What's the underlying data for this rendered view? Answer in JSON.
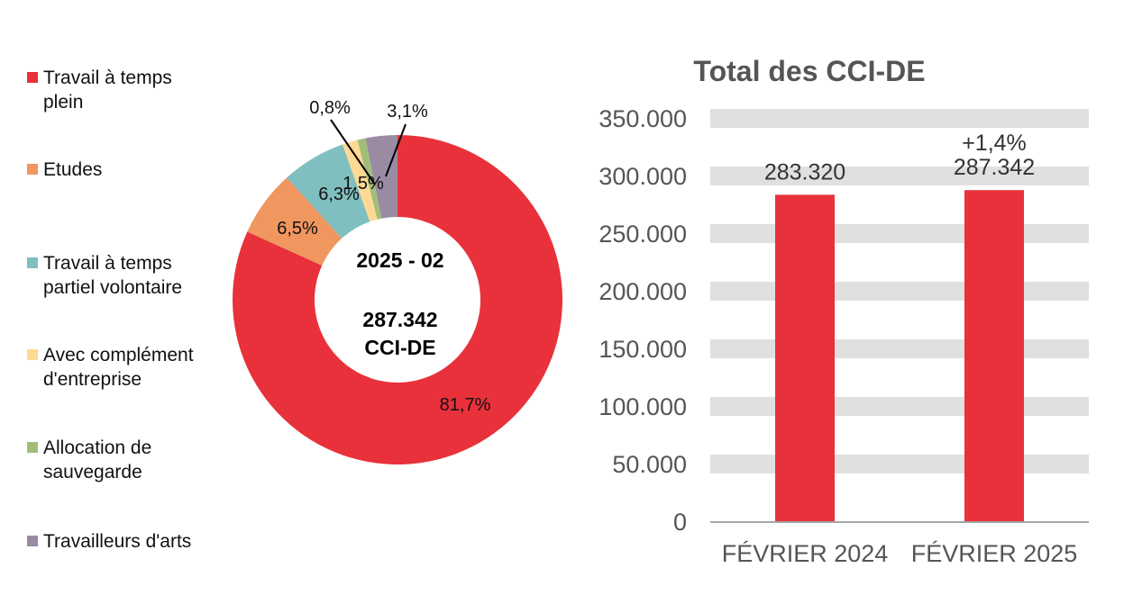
{
  "chart_data": [
    {
      "type": "pie",
      "variant": "donut",
      "center_text": {
        "line1": "2025 - 02",
        "line2": "287.342",
        "line3": "CCI-DE"
      },
      "legend_placement": "left",
      "slices": [
        {
          "name": "Travail à temps plein",
          "value": 81.7,
          "label": "81,7%",
          "color": "#E8313A"
        },
        {
          "name": "Etudes",
          "value": 6.5,
          "label": "6,5%",
          "color": "#F0965F"
        },
        {
          "name": "Travail à temps partiel volontaire",
          "value": 6.3,
          "label": "6,3%",
          "color": "#80BFBF"
        },
        {
          "name": "Avec complément d'entreprise",
          "value": 1.5,
          "label": "1,5%",
          "color": "#FDD993"
        },
        {
          "name": "Allocation de sauvegarde",
          "value": 0.8,
          "label": "0,8%",
          "color": "#A0BE78"
        },
        {
          "name": "Travailleurs d'arts",
          "value": 3.1,
          "label": "3,1%",
          "color": "#9A8BA3"
        }
      ]
    },
    {
      "type": "bar",
      "title": "Total des CCI-DE",
      "categories": [
        "FÉVRIER 2024",
        "FÉVRIER 2025"
      ],
      "values": [
        283320,
        287342
      ],
      "value_labels": [
        "283.320",
        "287.342"
      ],
      "annotations": [
        "",
        "+1,4%"
      ],
      "color": "#E8313A",
      "ylim": [
        0,
        350000
      ],
      "yticks": [
        0,
        50000,
        100000,
        150000,
        200000,
        250000,
        300000,
        350000
      ],
      "ytick_labels": [
        "0",
        "50.000",
        "100.000",
        "150.000",
        "200.000",
        "250.000",
        "300.000",
        "350.000"
      ],
      "grid": true,
      "grid_color": "#E0E0E0"
    }
  ]
}
